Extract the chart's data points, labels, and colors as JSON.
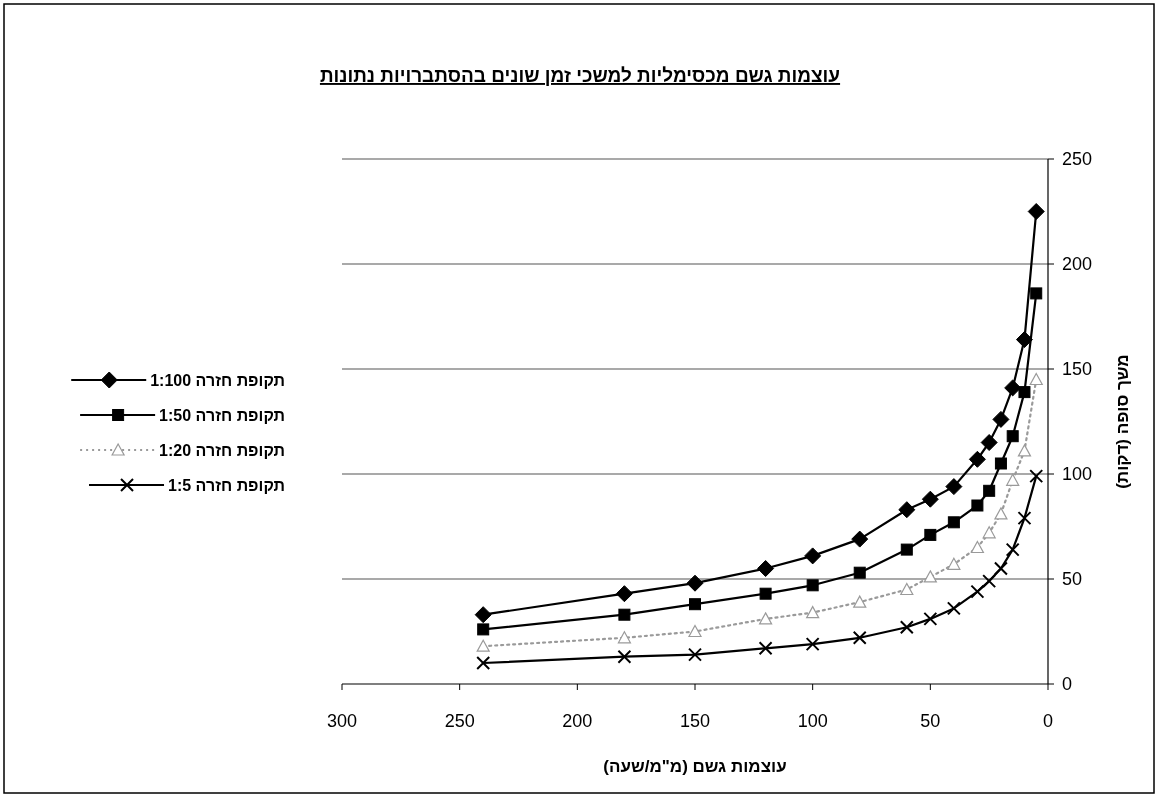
{
  "chart_data": {
    "type": "line",
    "title": "עוצמות גשם מכסימליות למשכי זמן שונים בהסתברויות נתונות",
    "xlabel": "עוצמות גשם (מ\"מ/שעה)",
    "ylabel": "משך סופה (דקות)",
    "x": [
      240,
      180,
      150,
      120,
      100,
      80,
      60,
      50,
      40,
      30,
      25,
      20,
      15,
      10,
      5
    ],
    "xlim": [
      300,
      0
    ],
    "xticks": [
      300,
      250,
      200,
      150,
      100,
      50,
      0
    ],
    "ylim": [
      0,
      250
    ],
    "yticks": [
      0,
      50,
      100,
      150,
      200,
      250
    ],
    "grid": "y",
    "legend": "left",
    "line_style": "solid",
    "series": [
      {
        "name": "תקופת חזרה 1:100",
        "color": "#000000",
        "marker": "diamond",
        "values": [
          33,
          43,
          48,
          55,
          61,
          69,
          83,
          88,
          94,
          107,
          115,
          126,
          141,
          164,
          225
        ]
      },
      {
        "name": "תקופת חזרה 1:50",
        "color": "#000000",
        "marker": "square",
        "values": [
          26,
          33,
          38,
          43,
          47,
          53,
          64,
          71,
          77,
          85,
          92,
          105,
          118,
          139,
          186
        ]
      },
      {
        "name": "תקופת חזרה 1:20",
        "color": "#9a9a9a",
        "marker": "triangle",
        "line_style": "dotted",
        "values": [
          18,
          22,
          25,
          31,
          34,
          39,
          45,
          51,
          57,
          65,
          72,
          81,
          97,
          111,
          145
        ]
      },
      {
        "name": "תקופת חזרה 1:5",
        "color": "#000000",
        "marker": "cross",
        "values": [
          10,
          13,
          14,
          17,
          19,
          22,
          27,
          31,
          36,
          44,
          49,
          55,
          64,
          79,
          99
        ]
      }
    ]
  }
}
